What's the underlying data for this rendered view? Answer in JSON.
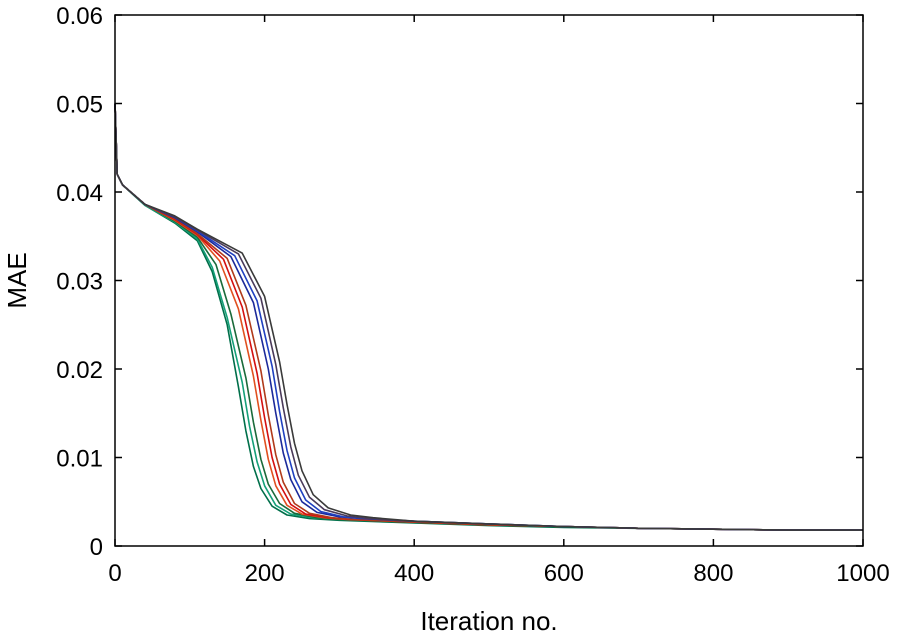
{
  "chart_data": {
    "type": "line",
    "title": "",
    "xlabel": "Iteration no.",
    "ylabel": "MAE",
    "xlim": [
      0,
      1000
    ],
    "ylim": [
      0,
      0.06
    ],
    "grid": false,
    "legend": "none",
    "xticks": [
      {
        "value": 0,
        "label": "0"
      },
      {
        "value": 200,
        "label": "200"
      },
      {
        "value": 400,
        "label": "400"
      },
      {
        "value": 600,
        "label": "600"
      },
      {
        "value": 800,
        "label": "800"
      },
      {
        "value": 1000,
        "label": "1000"
      }
    ],
    "yticks": [
      {
        "value": 0,
        "label": "0"
      },
      {
        "value": 0.01,
        "label": "0.01"
      },
      {
        "value": 0.02,
        "label": "0.02"
      },
      {
        "value": 0.03,
        "label": "0.03"
      },
      {
        "value": 0.04,
        "label": "0.04"
      },
      {
        "value": 0.05,
        "label": "0.05"
      },
      {
        "value": 0.06,
        "label": "0.06"
      }
    ],
    "series": [
      {
        "color": "#006f4a",
        "x": [
          0,
          3,
          10,
          40,
          80,
          110,
          130,
          150,
          165,
          175,
          185,
          195,
          210,
          230,
          260,
          300,
          400,
          500,
          600,
          700,
          800,
          900,
          1000
        ],
        "y": [
          0.05,
          0.042,
          0.0408,
          0.0385,
          0.0365,
          0.0345,
          0.031,
          0.025,
          0.018,
          0.013,
          0.009,
          0.0065,
          0.0045,
          0.0035,
          0.0031,
          0.0029,
          0.0026,
          0.0023,
          0.0021,
          0.002,
          0.0019,
          0.0018,
          0.0018
        ]
      },
      {
        "color": "#14a078",
        "x": [
          0,
          3,
          10,
          40,
          80,
          110,
          130,
          150,
          170,
          180,
          190,
          200,
          215,
          235,
          265,
          300,
          400,
          500,
          600,
          700,
          800,
          900,
          1000
        ],
        "y": [
          0.05,
          0.042,
          0.0408,
          0.0385,
          0.0366,
          0.0347,
          0.0315,
          0.0258,
          0.0185,
          0.0135,
          0.0095,
          0.0068,
          0.0046,
          0.0036,
          0.0032,
          0.003,
          0.0027,
          0.0024,
          0.0022,
          0.002,
          0.0019,
          0.0018,
          0.0018
        ]
      },
      {
        "color": "#1a6a3a",
        "x": [
          0,
          3,
          10,
          40,
          80,
          110,
          135,
          155,
          175,
          185,
          195,
          205,
          220,
          240,
          270,
          300,
          400,
          500,
          600,
          700,
          800,
          900,
          1000
        ],
        "y": [
          0.05,
          0.042,
          0.0408,
          0.0386,
          0.0367,
          0.0349,
          0.0318,
          0.0262,
          0.019,
          0.014,
          0.0098,
          0.007,
          0.0048,
          0.0037,
          0.0032,
          0.003,
          0.0027,
          0.0024,
          0.0022,
          0.002,
          0.0019,
          0.0018,
          0.0018
        ]
      },
      {
        "color": "#e05020",
        "x": [
          0,
          3,
          10,
          40,
          80,
          110,
          140,
          165,
          185,
          195,
          205,
          215,
          230,
          250,
          280,
          310,
          400,
          500,
          600,
          700,
          800,
          900,
          1000
        ],
        "y": [
          0.05,
          0.042,
          0.0408,
          0.0386,
          0.0368,
          0.0351,
          0.0322,
          0.0268,
          0.0192,
          0.0142,
          0.0098,
          0.0068,
          0.0046,
          0.0036,
          0.0032,
          0.003,
          0.0027,
          0.0024,
          0.0022,
          0.002,
          0.0019,
          0.0018,
          0.0018
        ]
      },
      {
        "color": "#d41010",
        "x": [
          0,
          3,
          10,
          40,
          80,
          110,
          145,
          170,
          190,
          200,
          210,
          220,
          235,
          255,
          285,
          315,
          400,
          500,
          600,
          700,
          800,
          900,
          1000
        ],
        "y": [
          0.05,
          0.042,
          0.0408,
          0.0386,
          0.0369,
          0.0352,
          0.0324,
          0.027,
          0.0195,
          0.0145,
          0.01,
          0.007,
          0.0047,
          0.0036,
          0.0032,
          0.003,
          0.0027,
          0.0024,
          0.0022,
          0.002,
          0.0019,
          0.0018,
          0.0018
        ]
      },
      {
        "color": "#b03a1a",
        "x": [
          0,
          3,
          10,
          40,
          80,
          110,
          150,
          175,
          195,
          205,
          215,
          225,
          240,
          260,
          290,
          320,
          400,
          500,
          600,
          700,
          800,
          900,
          1000
        ],
        "y": [
          0.05,
          0.042,
          0.0408,
          0.0386,
          0.037,
          0.0353,
          0.0325,
          0.0272,
          0.0198,
          0.0148,
          0.0103,
          0.0072,
          0.0048,
          0.0037,
          0.0032,
          0.003,
          0.0027,
          0.0024,
          0.0022,
          0.002,
          0.0019,
          0.0018,
          0.0018
        ]
      },
      {
        "color": "#1c2a9a",
        "x": [
          0,
          3,
          10,
          40,
          80,
          110,
          155,
          185,
          205,
          215,
          225,
          235,
          250,
          270,
          300,
          330,
          400,
          500,
          600,
          700,
          800,
          900,
          1000
        ],
        "y": [
          0.05,
          0.042,
          0.0408,
          0.0386,
          0.0371,
          0.0355,
          0.0327,
          0.0275,
          0.02,
          0.015,
          0.0105,
          0.0075,
          0.005,
          0.0038,
          0.0033,
          0.0031,
          0.0028,
          0.0025,
          0.0022,
          0.002,
          0.0019,
          0.0018,
          0.0018
        ]
      },
      {
        "color": "#2040c0",
        "x": [
          0,
          3,
          10,
          40,
          80,
          110,
          160,
          190,
          210,
          220,
          230,
          240,
          255,
          275,
          305,
          335,
          400,
          500,
          600,
          700,
          800,
          900,
          1000
        ],
        "y": [
          0.05,
          0.042,
          0.0408,
          0.0386,
          0.0372,
          0.0356,
          0.0328,
          0.0277,
          0.0203,
          0.0152,
          0.0108,
          0.0077,
          0.0052,
          0.0039,
          0.0033,
          0.0031,
          0.0028,
          0.0025,
          0.0022,
          0.002,
          0.0019,
          0.0018,
          0.0018
        ]
      },
      {
        "color": "#4a3a5a",
        "x": [
          0,
          3,
          10,
          40,
          80,
          110,
          165,
          195,
          215,
          225,
          235,
          245,
          260,
          280,
          310,
          340,
          400,
          500,
          600,
          700,
          800,
          900,
          1000
        ],
        "y": [
          0.05,
          0.042,
          0.0408,
          0.0386,
          0.0372,
          0.0357,
          0.033,
          0.028,
          0.0205,
          0.0156,
          0.0112,
          0.008,
          0.0055,
          0.0041,
          0.0034,
          0.0031,
          0.0028,
          0.0025,
          0.0022,
          0.002,
          0.0019,
          0.0018,
          0.0018
        ]
      },
      {
        "color": "#3a3a3a",
        "x": [
          0,
          3,
          10,
          40,
          80,
          110,
          170,
          200,
          220,
          230,
          240,
          250,
          265,
          285,
          315,
          345,
          400,
          500,
          600,
          700,
          800,
          900,
          1000
        ],
        "y": [
          0.05,
          0.042,
          0.0408,
          0.0386,
          0.0373,
          0.0358,
          0.0331,
          0.0282,
          0.0208,
          0.016,
          0.0116,
          0.0085,
          0.0058,
          0.0043,
          0.0035,
          0.0032,
          0.0028,
          0.0025,
          0.0022,
          0.002,
          0.0019,
          0.0018,
          0.0018
        ]
      }
    ]
  }
}
